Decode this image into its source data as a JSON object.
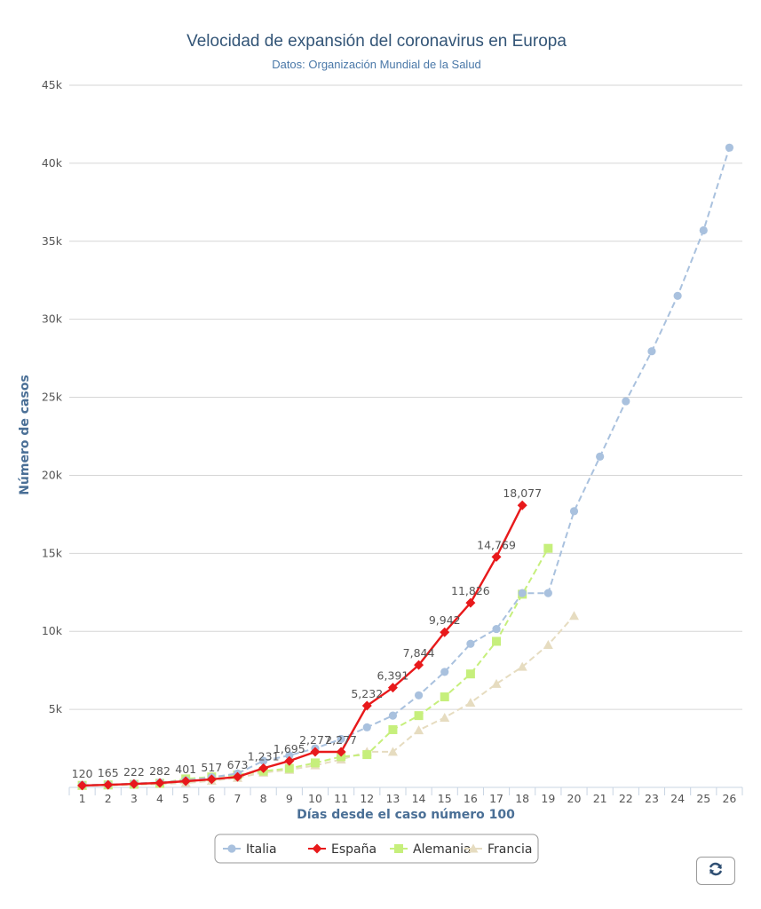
{
  "chart_data": {
    "type": "line",
    "title": "Velocidad de expansión del coronavirus en Europa",
    "subtitle": "Datos: Organización Mundial de la Salud",
    "xlabel": "Días desde el caso número 100",
    "ylabel": "Número de casos",
    "categories": [
      "1",
      "2",
      "3",
      "4",
      "5",
      "6",
      "7",
      "8",
      "9",
      "10",
      "11",
      "12",
      "13",
      "14",
      "15",
      "16",
      "17",
      "18",
      "19",
      "20",
      "21",
      "22",
      "23",
      "24",
      "25",
      "26"
    ],
    "y_ticks": [
      "",
      "5k",
      "10k",
      "15k",
      "20k",
      "25k",
      "30k",
      "35k",
      "40k",
      "45k"
    ],
    "ylim": [
      0,
      45000
    ],
    "grid": true,
    "legend_position": "bottom-center",
    "series": [
      {
        "name": "Italia",
        "color": "#a9c1de",
        "dash": "dashed",
        "marker": "circle",
        "x": [
          1,
          2,
          3,
          4,
          5,
          6,
          7,
          8,
          9,
          10,
          11,
          12,
          13,
          14,
          15,
          16,
          17,
          18,
          19,
          20,
          21,
          22,
          23,
          24,
          25,
          26
        ],
        "values": [
          150,
          180,
          250,
          320,
          450,
          650,
          890,
          1700,
          2050,
          2500,
          3100,
          3850,
          4600,
          5900,
          7400,
          9200,
          10150,
          12450,
          12450,
          17700,
          21200,
          24750,
          27950,
          31500,
          35700,
          41000
        ]
      },
      {
        "name": "España",
        "color": "#e8191b",
        "dash": "solid",
        "marker": "diamond",
        "x": [
          1,
          2,
          3,
          4,
          5,
          6,
          7,
          8,
          9,
          10,
          11,
          12,
          13,
          14,
          15,
          16,
          17,
          18
        ],
        "values": [
          120,
          165,
          222,
          282,
          401,
          517,
          673,
          1231,
          1695,
          2277,
          2277,
          5232,
          6391,
          7844,
          9942,
          11826,
          14769,
          18077
        ],
        "data_labels": [
          "120",
          "165",
          "222",
          "282",
          "401",
          "517",
          "673",
          "1,231",
          "1,695",
          "2,277",
          "2,277",
          "5,232",
          "6,391",
          "7,844",
          "9,942",
          "11,826",
          "14,769",
          "18,077"
        ]
      },
      {
        "name": "Alemania",
        "color": "#c6ef7c",
        "dash": "dashed",
        "marker": "square",
        "x": [
          1,
          2,
          3,
          4,
          5,
          6,
          7,
          8,
          9,
          10,
          11,
          12,
          13,
          14,
          15,
          16,
          17,
          18,
          19
        ],
        "values": [
          130,
          160,
          196,
          262,
          545,
          670,
          800,
          1040,
          1220,
          1570,
          1970,
          2100,
          3700,
          4600,
          5800,
          7270,
          9360,
          12380,
          15320
        ]
      },
      {
        "name": "Francia",
        "color": "#e6dcc0",
        "dash": "dashed",
        "marker": "triangle",
        "x": [
          1,
          2,
          3,
          4,
          5,
          6,
          7,
          8,
          9,
          10,
          11,
          12,
          13,
          14,
          15,
          16,
          17,
          18,
          19,
          20
        ],
        "values": [
          100,
          130,
          190,
          212,
          285,
          420,
          613,
          949,
          1126,
          1412,
          1784,
          2281,
          2281,
          3661,
          4469,
          5423,
          6633,
          7730,
          9134,
          10995
        ]
      }
    ]
  },
  "reset_button": {
    "icon": "refresh-icon"
  }
}
